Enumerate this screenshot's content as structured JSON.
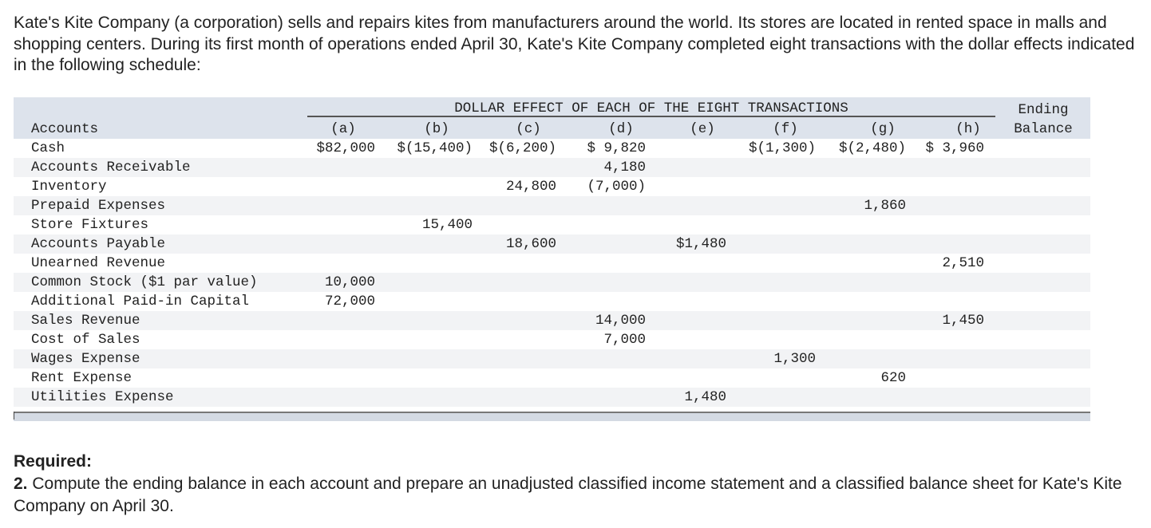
{
  "intro": "Kate's Kite Company (a corporation) sells and repairs kites from manufacturers around the world. Its stores are located in rented space in malls and shopping centers. During its first month of operations ended April 30, Kate's Kite Company completed eight transactions with the dollar effects indicated in the following schedule:",
  "table": {
    "group_header": "DOLLAR EFFECT OF EACH OF THE EIGHT TRANSACTIONS",
    "accounts_header": "Accounts",
    "ending_header_1": "Ending",
    "ending_header_2": "Balance",
    "columns": [
      "(a)",
      "(b)",
      "(c)",
      "(d)",
      "(e)",
      "(f)",
      "(g)",
      "(h)"
    ],
    "rows": [
      {
        "account": "Cash",
        "a": "$82,000",
        "b": "$(15,400)",
        "c": "$(6,200)",
        "d": "$ 9,820",
        "e": "",
        "f": "$(1,300)",
        "g": "$(2,480)",
        "h": "$ 3,960"
      },
      {
        "account": "Accounts Receivable",
        "a": "",
        "b": "",
        "c": "",
        "d": "4,180",
        "e": "",
        "f": "",
        "g": "",
        "h": ""
      },
      {
        "account": "Inventory",
        "a": "",
        "b": "",
        "c": "24,800",
        "d": "(7,000)",
        "e": "",
        "f": "",
        "g": "",
        "h": ""
      },
      {
        "account": "Prepaid Expenses",
        "a": "",
        "b": "",
        "c": "",
        "d": "",
        "e": "",
        "f": "",
        "g": "1,860",
        "h": ""
      },
      {
        "account": "Store Fixtures",
        "a": "",
        "b": "15,400",
        "c": "",
        "d": "",
        "e": "",
        "f": "",
        "g": "",
        "h": ""
      },
      {
        "account": "Accounts Payable",
        "a": "",
        "b": "",
        "c": "18,600",
        "d": "",
        "e": "$1,480",
        "f": "",
        "g": "",
        "h": ""
      },
      {
        "account": "Unearned Revenue",
        "a": "",
        "b": "",
        "c": "",
        "d": "",
        "e": "",
        "f": "",
        "g": "",
        "h": "2,510"
      },
      {
        "account": "Common Stock ($1 par value)",
        "a": "10,000",
        "b": "",
        "c": "",
        "d": "",
        "e": "",
        "f": "",
        "g": "",
        "h": ""
      },
      {
        "account": "Additional Paid-in Capital",
        "a": "72,000",
        "b": "",
        "c": "",
        "d": "",
        "e": "",
        "f": "",
        "g": "",
        "h": ""
      },
      {
        "account": "Sales Revenue",
        "a": "",
        "b": "",
        "c": "",
        "d": "14,000",
        "e": "",
        "f": "",
        "g": "",
        "h": "1,450"
      },
      {
        "account": "Cost of Sales",
        "a": "",
        "b": "",
        "c": "",
        "d": "7,000",
        "e": "",
        "f": "",
        "g": "",
        "h": ""
      },
      {
        "account": "Wages Expense",
        "a": "",
        "b": "",
        "c": "",
        "d": "",
        "e": "",
        "f": "1,300",
        "g": "",
        "h": ""
      },
      {
        "account": "Rent Expense",
        "a": "",
        "b": "",
        "c": "",
        "d": "",
        "e": "",
        "f": "",
        "g": "620",
        "h": ""
      },
      {
        "account": "Utilities Expense",
        "a": "",
        "b": "",
        "c": "",
        "d": "",
        "e": "1,480",
        "f": "",
        "g": "",
        "h": ""
      }
    ]
  },
  "required": {
    "heading": "Required:",
    "number": "2.",
    "text": " Compute the ending balance in each account and prepare an unadjusted classified income statement and a classified balance sheet for Kate's Kite Company on April 30."
  }
}
